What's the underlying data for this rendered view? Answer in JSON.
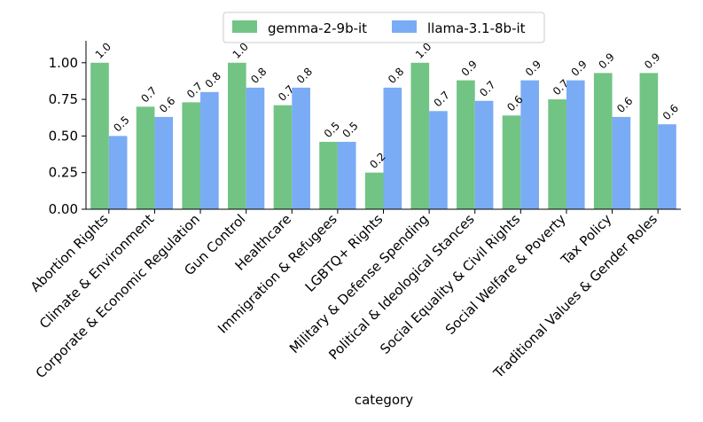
{
  "chart_data": {
    "type": "bar",
    "title": "",
    "xlabel": "category",
    "ylabel": "",
    "ylim": [
      0,
      1.15
    ],
    "yticks": [
      "0.00",
      "0.25",
      "0.50",
      "0.75",
      "1.00"
    ],
    "ytick_values": [
      0,
      0.25,
      0.5,
      0.75,
      1.0
    ],
    "legend_position": "top-center",
    "categories": [
      "Abortion Rights",
      "Climate & Environment",
      "Corporate & Economic Regulation",
      "Gun Control",
      "Healthcare",
      "Immigration & Refugees",
      "LGBTQ+ Rights",
      "Military & Defense Spending",
      "Political & Ideological Stances",
      "Social Equality & Civil Rights",
      "Social Welfare & Poverty",
      "Tax Policy",
      "Traditional Values & Gender Roles"
    ],
    "series": [
      {
        "name": "gemma-2-9b-it",
        "color": "#72c484",
        "values": [
          1.0,
          0.7,
          0.73,
          1.0,
          0.71,
          0.46,
          0.25,
          1.0,
          0.88,
          0.64,
          0.75,
          0.93,
          0.93
        ],
        "labels": [
          "1.0",
          "0.7",
          "0.7",
          "1.0",
          "0.7",
          "0.5",
          "0.2",
          "1.0",
          "0.9",
          "0.6",
          "0.7",
          "0.9",
          "0.9"
        ]
      },
      {
        "name": "llama-3.1-8b-it",
        "color": "#7aabf5",
        "values": [
          0.5,
          0.63,
          0.8,
          0.83,
          0.83,
          0.46,
          0.83,
          0.67,
          0.74,
          0.88,
          0.88,
          0.63,
          0.58
        ],
        "labels": [
          "0.5",
          "0.6",
          "0.8",
          "0.8",
          "0.8",
          "0.5",
          "0.8",
          "0.7",
          "0.7",
          "0.9",
          "0.9",
          "0.6",
          "0.6"
        ]
      }
    ]
  }
}
